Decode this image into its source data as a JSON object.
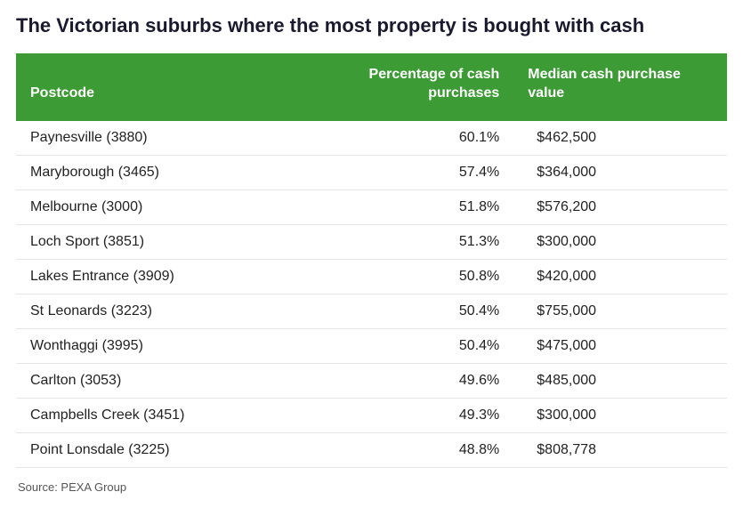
{
  "title": "The Victorian suburbs where the most property is bought with cash",
  "table": {
    "header_bg": "#3d9b35",
    "header_color": "#ffffff",
    "row_border_color": "#e5e5e5",
    "columns": [
      {
        "key": "postcode",
        "label": "Postcode",
        "align": "left"
      },
      {
        "key": "pct",
        "label": "Percentage of cash purchases",
        "align": "right"
      },
      {
        "key": "val",
        "label": "Median cash purchase value",
        "align": "left"
      }
    ],
    "rows": [
      {
        "postcode": "Paynesville (3880)",
        "pct": "60.1%",
        "val": "$462,500"
      },
      {
        "postcode": "Maryborough (3465)",
        "pct": "57.4%",
        "val": "$364,000"
      },
      {
        "postcode": "Melbourne (3000)",
        "pct": "51.8%",
        "val": "$576,200"
      },
      {
        "postcode": "Loch Sport (3851)",
        "pct": "51.3%",
        "val": "$300,000"
      },
      {
        "postcode": "Lakes Entrance (3909)",
        "pct": "50.8%",
        "val": "$420,000"
      },
      {
        "postcode": "St Leonards (3223)",
        "pct": "50.4%",
        "val": "$755,000"
      },
      {
        "postcode": "Wonthaggi (3995)",
        "pct": "50.4%",
        "val": "$475,000"
      },
      {
        "postcode": "Carlton (3053)",
        "pct": "49.6%",
        "val": "$485,000"
      },
      {
        "postcode": "Campbells Creek (3451)",
        "pct": "49.3%",
        "val": "$300,000"
      },
      {
        "postcode": "Point Lonsdale (3225)",
        "pct": "48.8%",
        "val": "$808,778"
      }
    ]
  },
  "source": "Source: PEXA Group"
}
